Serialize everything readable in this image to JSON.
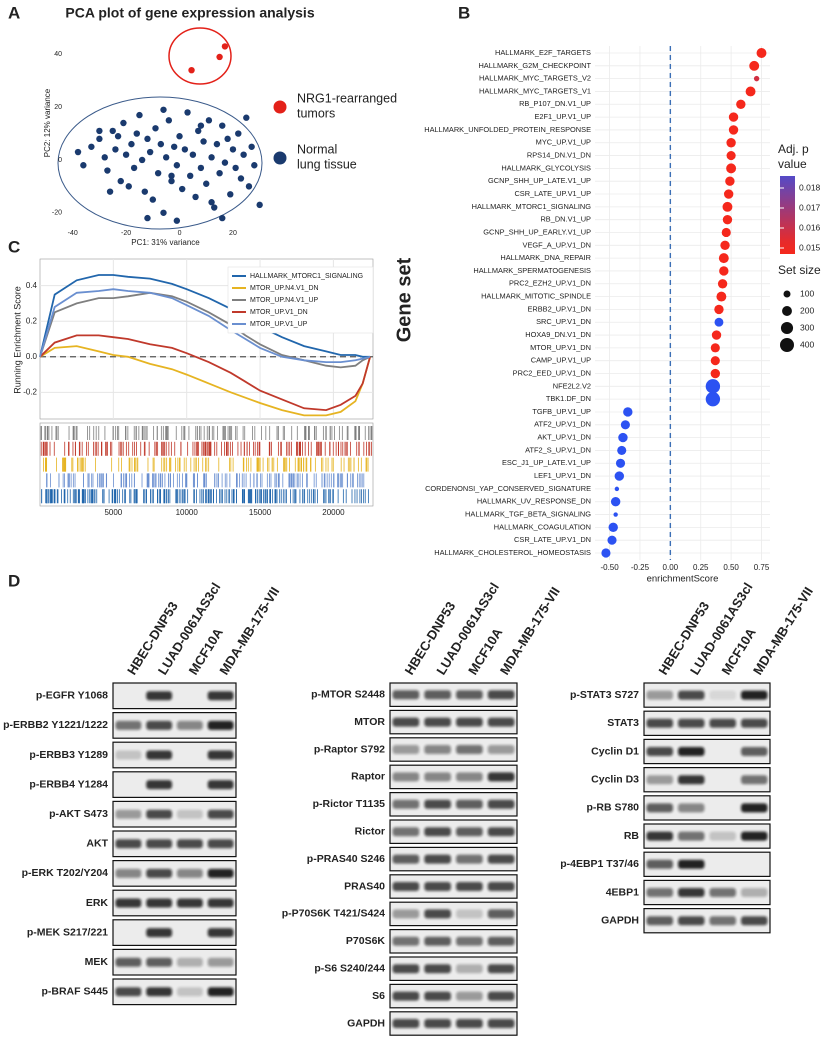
{
  "panel_labels": [
    "A",
    "B",
    "C",
    "D"
  ],
  "chart_data": [
    {
      "type": "scatter",
      "title": "PCA plot of gene expression analysis",
      "xlabel": "PC1: 31% variance",
      "ylabel": "PC2: 12% variance",
      "xlim": [
        -42.5,
        32
      ],
      "ylim": [
        -25,
        53
      ],
      "xticks": [
        -40,
        -20,
        0,
        20
      ],
      "yticks": [
        -20,
        0,
        20,
        40
      ],
      "series": [
        {
          "name": "NRG1-rearranged tumors",
          "color": "#e32119",
          "x": [
            4.5,
            15,
            17
          ],
          "values": [
            34,
            39,
            43
          ]
        },
        {
          "name": "Normal lung tissue",
          "color": "#1a3a6e",
          "x": [
            -38,
            -36,
            -33,
            -30,
            -28,
            -27,
            -25,
            -24,
            -22,
            -21,
            -20,
            -19,
            -18,
            -17,
            -16,
            -15,
            -14,
            -13,
            -12,
            -11,
            -10,
            -9,
            -8,
            -7,
            -6,
            -5,
            -4,
            -3,
            -2,
            -1,
            0,
            1,
            2,
            3,
            4,
            5,
            6,
            7,
            8,
            9,
            10,
            11,
            12,
            13,
            14,
            15,
            16,
            17,
            18,
            19,
            20,
            21,
            22,
            23,
            24,
            25,
            26,
            27,
            28,
            30,
            -26,
            -23,
            -12,
            -6,
            -3,
            8,
            12,
            16,
            -30,
            -1
          ],
          "values": [
            3,
            -2,
            5,
            8,
            1,
            -4,
            11,
            4,
            -8,
            14,
            2,
            -10,
            6,
            -3,
            10,
            17,
            0,
            -12,
            8,
            3,
            -15,
            12,
            -5,
            6,
            -20,
            1,
            15,
            -8,
            5,
            -2,
            9,
            -11,
            4,
            18,
            -6,
            2,
            -14,
            11,
            -3,
            7,
            -9,
            15,
            1,
            -18,
            6,
            -5,
            13,
            -1,
            8,
            -13,
            4,
            -3,
            10,
            -7,
            2,
            16,
            -10,
            5,
            -2,
            -17,
            -12,
            9,
            -22,
            19,
            -6,
            13,
            -16,
            -22,
            11,
            -23
          ]
        }
      ]
    },
    {
      "type": "dot",
      "xlabel": "enrichmentScore",
      "ylabel": "Gene set",
      "categories": [
        "HALLMARK_E2F_TARGETS",
        "HALLMARK_G2M_CHECKPOINT",
        "HALLMARK_MYC_TARGETS_V2",
        "HALLMARK_MYC_TARGETS_V1",
        "RB_P107_DN.V1_UP",
        "E2F1_UP.V1_UP",
        "HALLMARK_UNFOLDED_PROTEIN_RESPONSE",
        "MYC_UP.V1_UP",
        "RPS14_DN.V1_DN",
        "HALLMARK_GLYCOLYSIS",
        "GCNP_SHH_UP_LATE.V1_UP",
        "CSR_LATE_UP.V1_UP",
        "HALLMARK_MTORC1_SIGNALING",
        "RB_DN.V1_UP",
        "GCNP_SHH_UP_EARLY.V1_UP",
        "VEGF_A_UP.V1_DN",
        "HALLMARK_DNA_REPAIR",
        "HALLMARK_SPERMATOGENESIS",
        "PRC2_EZH2_UP.V1_DN",
        "HALLMARK_MITOTIC_SPINDLE",
        "ERBB2_UP.V1_DN",
        "SRC_UP.V1_DN",
        "HOXA9_DN.V1_DN",
        "MTOR_UP.V1_DN",
        "CAMP_UP.V1_UP",
        "PRC2_EED_UP.V1_DN",
        "NFE2L2.V2",
        "TBK1.DF_DN",
        "TGFB_UP.V1_UP",
        "ATF2_UP.V1_DN",
        "AKT_UP.V1_DN",
        "ATF2_S_UP.V1_DN",
        "ESC_J1_UP_LATE.V1_UP",
        "LEF1_UP.V1_DN",
        "CORDENONSI_YAP_CONSERVED_SIGNATURE",
        "HALLMARK_UV_RESPONSE_DN",
        "HALLMARK_TGF_BETA_SIGNALING",
        "HALLMARK_COAGULATION",
        "CSR_LATE_UP.V1_DN",
        "HALLMARK_CHOLESTEROL_HOMEOSTASIS"
      ],
      "values": [
        0.75,
        0.69,
        0.71,
        0.66,
        0.58,
        0.52,
        0.52,
        0.5,
        0.5,
        0.5,
        0.49,
        0.48,
        0.47,
        0.47,
        0.46,
        0.45,
        0.44,
        0.44,
        0.43,
        0.42,
        0.4,
        0.4,
        0.38,
        0.37,
        0.37,
        0.37,
        0.35,
        0.35,
        -0.35,
        -0.37,
        -0.39,
        -0.4,
        -0.41,
        -0.42,
        -0.44,
        -0.45,
        -0.45,
        -0.47,
        -0.48,
        -0.53
      ],
      "p_values": [
        0.015,
        0.015,
        0.0158,
        0.015,
        0.015,
        0.015,
        0.015,
        0.015,
        0.015,
        0.015,
        0.015,
        0.015,
        0.015,
        0.015,
        0.015,
        0.015,
        0.015,
        0.015,
        0.015,
        0.015,
        0.015,
        0.0195,
        0.015,
        0.015,
        0.015,
        0.015,
        0.0195,
        0.0195,
        0.0195,
        0.0195,
        0.0195,
        0.0195,
        0.0195,
        0.0195,
        0.0195,
        0.0195,
        0.0195,
        0.0195,
        0.0195,
        0.0195
      ],
      "sizes": [
        200,
        200,
        60,
        200,
        180,
        180,
        180,
        180,
        170,
        200,
        180,
        180,
        200,
        180,
        170,
        180,
        200,
        180,
        180,
        200,
        180,
        160,
        180,
        170,
        170,
        180,
        420,
        420,
        180,
        170,
        180,
        170,
        170,
        180,
        40,
        180,
        40,
        180,
        170,
        170
      ],
      "xlim": [
        -0.62,
        0.82
      ],
      "xticks": [
        {
          "value": -0.5,
          "label": "-0.50"
        },
        -0.25,
        {
          "value": 0,
          "label": "0.00"
        },
        0.25,
        {
          "value": 0.5,
          "label": "0.50"
        },
        0.75
      ],
      "color_title": "Adj. p value",
      "color_ticks": [
        0.015,
        0.016,
        0.017,
        0.018
      ],
      "clim": [
        0.0147,
        0.0186
      ],
      "color_domain": [
        0.015,
        0.0195
      ],
      "colors": [
        "#f5281c",
        "#2c52f2"
      ],
      "size_title": "Set size",
      "size_ticks": [
        100,
        200,
        300,
        400
      ],
      "grid": true
    },
    {
      "type": "line",
      "ylabel": "Running Enrichment Score",
      "x": [
        0,
        1000,
        2500,
        4000,
        5000,
        6000,
        7500,
        9000,
        10000,
        11500,
        13000,
        14000,
        15000,
        16500,
        18000,
        19500,
        20500,
        21500,
        22000,
        22500
      ],
      "series": [
        {
          "name": "HALLMARK_MTORC1_SIGNALING",
          "color": "#2166ac",
          "values": [
            0,
            0.35,
            0.43,
            0.46,
            0.46,
            0.45,
            0.44,
            0.41,
            0.38,
            0.33,
            0.27,
            0.22,
            0.17,
            0.11,
            0.06,
            0.03,
            0.01,
            0.01,
            0,
            0
          ]
        },
        {
          "name": "MTOR_UP.N4.V1_DN",
          "color": "#e6b422",
          "values": [
            0,
            0.05,
            0.06,
            0.03,
            0.01,
            0,
            -0.04,
            -0.07,
            -0.1,
            -0.15,
            -0.2,
            -0.23,
            -0.26,
            -0.3,
            -0.33,
            -0.33,
            -0.31,
            -0.25,
            -0.15,
            0
          ]
        },
        {
          "name": "MTOR_UP.N4.V1_UP",
          "color": "#7f7f7f",
          "values": [
            0,
            0.25,
            0.3,
            0.33,
            0.33,
            0.34,
            0.36,
            0.34,
            0.31,
            0.25,
            0.18,
            0.12,
            0.07,
            0.01,
            -0.02,
            -0.05,
            -0.06,
            -0.05,
            -0.02,
            0
          ]
        },
        {
          "name": "MTOR_UP.V1_DN",
          "color": "#c0392b",
          "values": [
            0,
            0.08,
            0.12,
            0.12,
            0.11,
            0.1,
            0.07,
            0.05,
            0.02,
            -0.03,
            -0.09,
            -0.14,
            -0.19,
            -0.24,
            -0.29,
            -0.3,
            -0.27,
            -0.22,
            -0.15,
            0
          ]
        },
        {
          "name": "MTOR_UP.V1_UP",
          "color": "#6a8fd0",
          "values": [
            0,
            0.28,
            0.36,
            0.37,
            0.38,
            0.37,
            0.36,
            0.33,
            0.29,
            0.23,
            0.15,
            0.1,
            0.05,
            0,
            -0.02,
            -0.03,
            -0.03,
            -0.02,
            -0.01,
            0
          ]
        }
      ],
      "xlim": [
        0,
        22700
      ],
      "ylim": [
        -0.35,
        0.55
      ],
      "xticks": [
        5000,
        10000,
        15000,
        20000
      ],
      "yticks": [
        -0.2,
        {
          "value": 0,
          "label": "0.0"
        },
        0.2,
        0.4
      ],
      "grid": true
    }
  ],
  "blots": {
    "groups": [
      {
        "lanes": [
          "HBEC-DNP53",
          "LUAD-0061AS3cl",
          "MCF10A",
          "MDA-MB-175-VII"
        ],
        "rows": [
          "p-EGFR Y1068",
          "p-ERBB2 Y1221/1222",
          "p-ERBB3 Y1289",
          "p-ERBB4 Y1284",
          "p-AKT S473",
          "AKT",
          "p-ERK T202/Y204",
          "ERK",
          "p-MEK S217/221",
          "MEK",
          "p-BRAF S445"
        ]
      },
      {
        "lanes": [
          "HBEC-DNP53",
          "LUAD-0061AS3cl",
          "MCF10A",
          "MDA-MB-175-VII"
        ],
        "rows": [
          "p-MTOR S2448",
          "MTOR",
          "p-Raptor S792",
          "Raptor",
          "p-Rictor T1135",
          "Rictor",
          "p-PRAS40 S246",
          "PRAS40",
          "p-P70S6K T421/S424",
          "P70S6K",
          "p-S6 S240/244",
          "S6",
          "GAPDH"
        ]
      },
      {
        "lanes": [
          "HBEC-DNP53",
          "LUAD-0061AS3cl",
          "MCF10A",
          "MDA-MB-175-VII"
        ],
        "rows": [
          "p-STAT3 S727",
          "STAT3",
          "Cyclin D1",
          "Cyclin D3",
          "p-RB S780",
          "RB",
          "p-4EBP1 T37/46",
          "4EBP1",
          "GAPDH"
        ]
      }
    ]
  }
}
